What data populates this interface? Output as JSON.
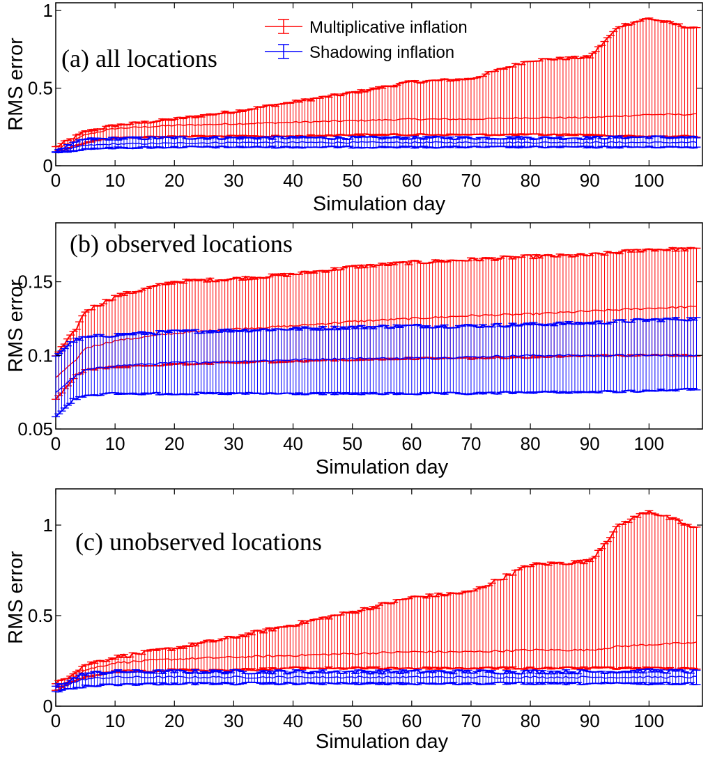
{
  "colors": {
    "multiplicative": "#ff0000",
    "shadowing": "#0000ff",
    "axes": "#000000",
    "background": "#ffffff"
  },
  "chart_data": [
    {
      "type": "line",
      "panel_label": "(a) all locations",
      "xlabel": "Simulation day",
      "ylabel": "RMS error",
      "xlim": [
        0,
        109
      ],
      "ylim": [
        0,
        1.05
      ],
      "xticks": [
        0,
        10,
        20,
        30,
        40,
        50,
        60,
        70,
        80,
        90,
        100
      ],
      "yticks": [
        0,
        0.5,
        1
      ],
      "ytick_labels": [
        "0",
        "0.5",
        "1"
      ],
      "legend": {
        "position": "top-center",
        "entries": [
          "Multiplicative inflation",
          "Shadowing inflation"
        ]
      },
      "series": [
        {
          "name": "Multiplicative inflation",
          "color": "#ff0000",
          "anchors_x": [
            0,
            5,
            10,
            20,
            30,
            40,
            50,
            60,
            70,
            80,
            90,
            95,
            100,
            108
          ],
          "mean": [
            0.1,
            0.2,
            0.24,
            0.26,
            0.27,
            0.28,
            0.29,
            0.3,
            0.3,
            0.31,
            0.31,
            0.32,
            0.33,
            0.33
          ],
          "upper": [
            0.12,
            0.22,
            0.26,
            0.3,
            0.35,
            0.41,
            0.47,
            0.54,
            0.56,
            0.68,
            0.7,
            0.9,
            0.95,
            0.88
          ],
          "lower": [
            0.09,
            0.15,
            0.18,
            0.19,
            0.19,
            0.19,
            0.2,
            0.2,
            0.2,
            0.2,
            0.2,
            0.19,
            0.19,
            0.19
          ]
        },
        {
          "name": "Shadowing inflation",
          "color": "#0000ff",
          "anchors_x": [
            0,
            5,
            10,
            20,
            30,
            40,
            50,
            60,
            70,
            80,
            90,
            100,
            108
          ],
          "mean": [
            0.09,
            0.13,
            0.14,
            0.145,
            0.15,
            0.15,
            0.15,
            0.15,
            0.15,
            0.15,
            0.15,
            0.15,
            0.15
          ],
          "upper": [
            0.1,
            0.17,
            0.175,
            0.18,
            0.18,
            0.18,
            0.18,
            0.18,
            0.18,
            0.18,
            0.18,
            0.185,
            0.18
          ],
          "lower": [
            0.08,
            0.11,
            0.115,
            0.12,
            0.12,
            0.12,
            0.12,
            0.12,
            0.12,
            0.12,
            0.12,
            0.12,
            0.12
          ]
        }
      ]
    },
    {
      "type": "line",
      "panel_label": "(b) observed locations",
      "xlabel": "Simulation day",
      "ylabel": "RMS error",
      "xlim": [
        0,
        109
      ],
      "ylim": [
        0.05,
        0.19
      ],
      "xticks": [
        0,
        10,
        20,
        30,
        40,
        50,
        60,
        70,
        80,
        90,
        100
      ],
      "yticks": [
        0.05,
        0.1,
        0.15
      ],
      "ytick_labels": [
        "0.05",
        "0.1",
        "0.15"
      ],
      "series": [
        {
          "name": "Multiplicative inflation",
          "color": "#ff0000",
          "anchors_x": [
            0,
            3,
            5,
            10,
            20,
            30,
            40,
            50,
            60,
            70,
            80,
            90,
            100,
            108
          ],
          "mean": [
            0.085,
            0.095,
            0.105,
            0.11,
            0.115,
            0.118,
            0.12,
            0.123,
            0.125,
            0.127,
            0.128,
            0.13,
            0.132,
            0.133
          ],
          "upper": [
            0.1,
            0.115,
            0.13,
            0.14,
            0.15,
            0.152,
            0.155,
            0.16,
            0.163,
            0.165,
            0.167,
            0.168,
            0.172,
            0.172
          ],
          "lower": [
            0.07,
            0.085,
            0.09,
            0.092,
            0.094,
            0.095,
            0.096,
            0.097,
            0.098,
            0.098,
            0.099,
            0.1,
            0.1,
            0.1
          ]
        },
        {
          "name": "Shadowing inflation",
          "color": "#0000ff",
          "anchors_x": [
            0,
            3,
            5,
            10,
            20,
            30,
            40,
            50,
            60,
            70,
            80,
            90,
            100,
            108
          ],
          "mean": [
            0.075,
            0.085,
            0.09,
            0.093,
            0.095,
            0.096,
            0.097,
            0.098,
            0.098,
            0.099,
            0.1,
            0.1,
            0.1,
            0.1
          ],
          "upper": [
            0.1,
            0.11,
            0.112,
            0.114,
            0.116,
            0.117,
            0.118,
            0.119,
            0.12,
            0.12,
            0.121,
            0.122,
            0.124,
            0.125
          ],
          "lower": [
            0.058,
            0.07,
            0.073,
            0.074,
            0.074,
            0.074,
            0.074,
            0.074,
            0.074,
            0.074,
            0.075,
            0.075,
            0.076,
            0.077
          ]
        }
      ]
    },
    {
      "type": "line",
      "panel_label": "(c) unobserved locations",
      "xlabel": "Simulation day",
      "ylabel": "RMS error",
      "xlim": [
        0,
        109
      ],
      "ylim": [
        0,
        1.2
      ],
      "xticks": [
        0,
        10,
        20,
        30,
        40,
        50,
        60,
        70,
        80,
        90,
        100
      ],
      "yticks": [
        0,
        0.5,
        1
      ],
      "ytick_labels": [
        "0",
        "0.5",
        "1"
      ],
      "series": [
        {
          "name": "Multiplicative inflation",
          "color": "#ff0000",
          "anchors_x": [
            0,
            5,
            10,
            20,
            30,
            40,
            50,
            60,
            70,
            80,
            90,
            95,
            100,
            108
          ],
          "mean": [
            0.1,
            0.2,
            0.24,
            0.26,
            0.27,
            0.28,
            0.29,
            0.3,
            0.3,
            0.31,
            0.31,
            0.33,
            0.34,
            0.35
          ],
          "upper": [
            0.12,
            0.23,
            0.27,
            0.32,
            0.38,
            0.45,
            0.52,
            0.6,
            0.63,
            0.78,
            0.8,
            1.0,
            1.08,
            0.98
          ],
          "lower": [
            0.09,
            0.16,
            0.19,
            0.2,
            0.2,
            0.21,
            0.21,
            0.21,
            0.21,
            0.21,
            0.21,
            0.21,
            0.21,
            0.21
          ]
        },
        {
          "name": "Shadowing inflation",
          "color": "#0000ff",
          "anchors_x": [
            0,
            5,
            10,
            20,
            30,
            40,
            50,
            60,
            70,
            80,
            90,
            100,
            108
          ],
          "mean": [
            0.1,
            0.15,
            0.16,
            0.16,
            0.16,
            0.16,
            0.16,
            0.16,
            0.16,
            0.16,
            0.16,
            0.16,
            0.16
          ],
          "upper": [
            0.11,
            0.18,
            0.19,
            0.19,
            0.19,
            0.19,
            0.19,
            0.19,
            0.19,
            0.19,
            0.19,
            0.195,
            0.19
          ],
          "lower": [
            0.08,
            0.11,
            0.12,
            0.125,
            0.125,
            0.125,
            0.125,
            0.125,
            0.125,
            0.125,
            0.125,
            0.125,
            0.125
          ]
        }
      ]
    }
  ]
}
